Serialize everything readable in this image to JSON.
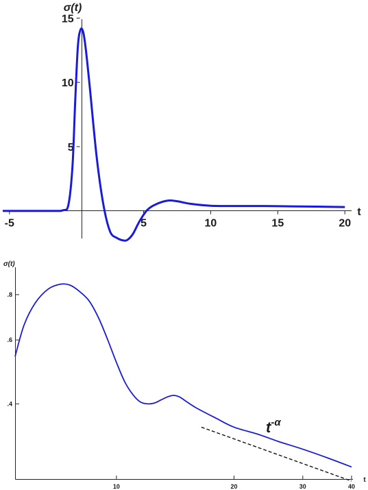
{
  "chart_data": [
    {
      "type": "line",
      "ylabel": "σ(t)",
      "xlabel": "t",
      "xlim": [
        -5.5,
        20.5
      ],
      "ylim": [
        -2.2,
        15.5
      ],
      "x_ticks": [
        "-5",
        "5",
        "10",
        "15",
        "20"
      ],
      "x_tick_values": [
        -5,
        5,
        10,
        15,
        20
      ],
      "y_ticks": [
        "5",
        "10",
        "15"
      ],
      "y_tick_values": [
        5,
        10,
        15
      ],
      "line_color": "#1a1adc",
      "series": [
        {
          "x": [
            -5.5,
            -2,
            -1,
            -0.6,
            -0.3,
            -0.1,
            0.1,
            0.3,
            0.5,
            0.7,
            1.0,
            1.5,
            2.0,
            2.5,
            3.0,
            3.5,
            3.8,
            4.2,
            4.7,
            5.3,
            6.0,
            6.8,
            7.5,
            8.5,
            10,
            12,
            14,
            16,
            18,
            20
          ],
          "y": [
            0,
            0,
            0.05,
            0.5,
            3.5,
            8.5,
            12.8,
            14.1,
            13.9,
            12.5,
            9.5,
            4.2,
            0.5,
            -1.6,
            -2.1,
            -2.3,
            -2.25,
            -1.8,
            -0.8,
            0.1,
            0.55,
            0.8,
            0.75,
            0.55,
            0.4,
            0.38,
            0.38,
            0.35,
            0.33,
            0.3
          ]
        }
      ]
    },
    {
      "type": "line",
      "ylabel": "σ(t)",
      "xlabel": "t",
      "xscale": "log",
      "yscale": "log",
      "xlim": [
        5.5,
        40
      ],
      "ylim": [
        0.245,
        0.88
      ],
      "x_ticks": [
        "10",
        "20",
        "30",
        "40"
      ],
      "x_tick_values": [
        10,
        20,
        30,
        40
      ],
      "y_ticks": [
        ".4",
        ".6",
        ".8"
      ],
      "y_tick_values": [
        0.4,
        0.6,
        0.8
      ],
      "annotation": "t^{-α}",
      "annotation_base": "t",
      "annotation_sup": "-α",
      "line_color": "#1a1adc",
      "series": [
        {
          "x": [
            5.5,
            5.8,
            6.2,
            6.7,
            7.2,
            7.6,
            8.0,
            8.5,
            9.0,
            9.5,
            10.0,
            10.5,
            11.0,
            11.5,
            12.0,
            12.5,
            13.0,
            13.5,
            14.0,
            14.5,
            15.0,
            16.0,
            18.0,
            20.0,
            23.0,
            26.0,
            30.0,
            35.0,
            40.0
          ],
          "y": [
            0.54,
            0.66,
            0.76,
            0.83,
            0.855,
            0.85,
            0.82,
            0.77,
            0.69,
            0.6,
            0.52,
            0.46,
            0.425,
            0.405,
            0.4,
            0.402,
            0.41,
            0.418,
            0.422,
            0.418,
            0.408,
            0.39,
            0.365,
            0.345,
            0.33,
            0.315,
            0.3,
            0.283,
            0.268
          ]
        },
        {
          "name": "",
          "style": "dashed",
          "x": [
            16.5,
            40
          ],
          "y": [
            0.345,
            0.245
          ]
        }
      ]
    }
  ]
}
